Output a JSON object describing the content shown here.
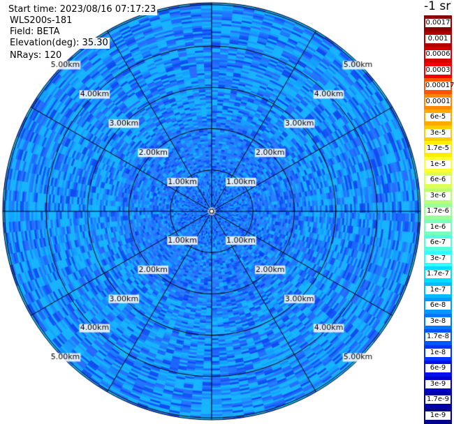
{
  "info": {
    "start_time": "Start time: 2023/08/16 07:17:23",
    "instrument": "WLS200s-181",
    "field": "Field: BETA",
    "elevation": "Elevation(deg): 35.30",
    "nrays": "NRays: 120"
  },
  "unit_label": "-1 sr",
  "range_rings": {
    "labels": [
      "1.00km",
      "2.00km",
      "3.00km",
      "4.00km",
      "5.00km"
    ],
    "values_km": [
      1,
      2,
      3,
      4,
      5
    ],
    "max_range_km": 5.0
  },
  "colorbar": {
    "labels": [
      "0.0017",
      "0.001",
      "0.0006",
      "0.0003",
      "0.00017",
      "0.0001",
      "6e-5",
      "3e-5",
      "1.7e-5",
      "1e-5",
      "6e-6",
      "3e-6",
      "1.7e-6",
      "1e-6",
      "6e-7",
      "3e-7",
      "1.7e-7",
      "1e-7",
      "6e-8",
      "3e-8",
      "1.7e-8",
      "1e-8",
      "6e-9",
      "3e-9",
      "1.7e-9",
      "1e-9"
    ],
    "colors": [
      "#8b0000",
      "#b00000",
      "#d40000",
      "#f50000",
      "#ff5500",
      "#ff8800",
      "#ffaa00",
      "#ffcc00",
      "#ffee00",
      "#ffff33",
      "#ddff55",
      "#bbff77",
      "#99ff99",
      "#77ffbb",
      "#55ffdd",
      "#33ffff",
      "#00ddff",
      "#00bbff",
      "#0099ff",
      "#0077ff",
      "#0055ff",
      "#0033ff",
      "#0011ee",
      "#0000cc",
      "#0000aa",
      "#000088"
    ]
  },
  "colors": {
    "field_base": "#1e66ff",
    "field_light": "#18b4ff",
    "field_dark": "#0a3cff",
    "grid": "#000000"
  }
}
